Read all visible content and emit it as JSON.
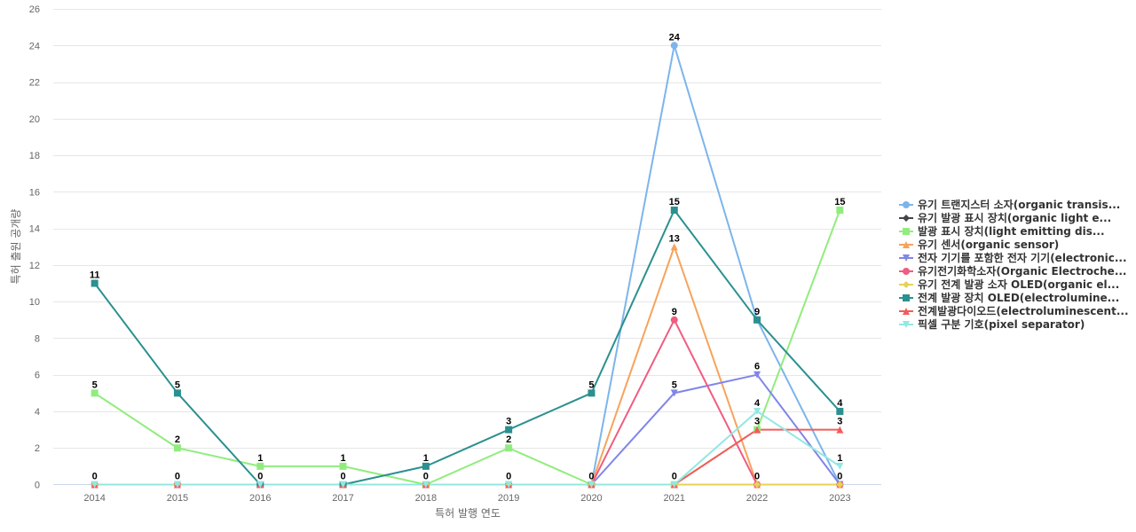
{
  "chart_data": {
    "type": "line",
    "title": "",
    "xlabel": "특허 발행 연도",
    "ylabel": "특허 출원 공개량",
    "x": [
      "2014",
      "2015",
      "2016",
      "2017",
      "2018",
      "2019",
      "2020",
      "2021",
      "2022",
      "2023"
    ],
    "ylim": [
      0,
      26
    ],
    "yticks": [
      0,
      2,
      4,
      6,
      8,
      10,
      12,
      14,
      16,
      18,
      20,
      22,
      24,
      26
    ],
    "grid": true,
    "legend_position": "right",
    "series": [
      {
        "name": "유기 트랜지스터 소자(organic transis...",
        "color": "#7cb5ec",
        "marker": "circle",
        "values": [
          0,
          0,
          0,
          0,
          0,
          0,
          0,
          24,
          9,
          0
        ]
      },
      {
        "name": "유기 발광 표시 장치(organic light e...",
        "color": "#434348",
        "marker": "diamond",
        "values": [
          0,
          0,
          0,
          0,
          0,
          0,
          0,
          0,
          0,
          0
        ]
      },
      {
        "name": "발광 표시 장치(light emitting dis...",
        "color": "#90ed7d",
        "marker": "square",
        "values": [
          5,
          2,
          1,
          1,
          0,
          2,
          0,
          0,
          3,
          15
        ]
      },
      {
        "name": "유기 센서(organic sensor)",
        "color": "#f7a35c",
        "marker": "triangle",
        "values": [
          0,
          0,
          0,
          0,
          0,
          0,
          0,
          13,
          0,
          0
        ]
      },
      {
        "name": "전자 기기를 포함한 전자 기기(electronic...",
        "color": "#8085e9",
        "marker": "triangle-down",
        "values": [
          0,
          0,
          0,
          0,
          0,
          0,
          0,
          5,
          6,
          0
        ]
      },
      {
        "name": "유기전기화학소자(Organic Electroche...",
        "color": "#f15c80",
        "marker": "circle",
        "values": [
          0,
          0,
          0,
          0,
          0,
          0,
          0,
          9,
          0,
          0
        ]
      },
      {
        "name": "유기 전계 발광 소자 OLED(organic el...",
        "color": "#e4d354",
        "marker": "diamond",
        "values": [
          0,
          0,
          0,
          0,
          0,
          0,
          0,
          0,
          0,
          0
        ]
      },
      {
        "name": "전계 발광 장치 OLED(electrolumine...",
        "color": "#2b908f",
        "marker": "square",
        "values": [
          11,
          5,
          0,
          0,
          1,
          3,
          5,
          15,
          9,
          4
        ]
      },
      {
        "name": "전계발광다이오드(electroluminescent...",
        "color": "#f45b5b",
        "marker": "triangle",
        "values": [
          0,
          0,
          0,
          0,
          0,
          0,
          0,
          0,
          3,
          3
        ]
      },
      {
        "name": "픽셀 구분 기호(pixel separator)",
        "color": "#91e8e1",
        "marker": "triangle-down",
        "values": [
          0,
          0,
          0,
          0,
          0,
          0,
          0,
          0,
          4,
          1
        ]
      }
    ],
    "data_labels": [
      {
        "x": "2014",
        "series": 0,
        "text": "0"
      },
      {
        "x": "2014",
        "series": 2,
        "text": "5"
      },
      {
        "x": "2014",
        "series": 7,
        "text": "11"
      },
      {
        "x": "2015",
        "series": 0,
        "text": "0"
      },
      {
        "x": "2015",
        "series": 2,
        "text": "2"
      },
      {
        "x": "2015",
        "series": 7,
        "text": "5"
      },
      {
        "x": "2016",
        "series": 0,
        "text": "0"
      },
      {
        "x": "2016",
        "series": 2,
        "text": "1"
      },
      {
        "x": "2017",
        "series": 0,
        "text": "0"
      },
      {
        "x": "2017",
        "series": 2,
        "text": "1"
      },
      {
        "x": "2018",
        "series": 0,
        "text": "0"
      },
      {
        "x": "2018",
        "series": 7,
        "text": "1"
      },
      {
        "x": "2019",
        "series": 0,
        "text": "0"
      },
      {
        "x": "2019",
        "series": 2,
        "text": "2"
      },
      {
        "x": "2019",
        "series": 7,
        "text": "3"
      },
      {
        "x": "2020",
        "series": 0,
        "text": "0"
      },
      {
        "x": "2020",
        "series": 7,
        "text": "5"
      },
      {
        "x": "2021",
        "series": 0,
        "text": "24"
      },
      {
        "x": "2021",
        "series": 7,
        "text": "15"
      },
      {
        "x": "2021",
        "series": 3,
        "text": "13"
      },
      {
        "x": "2021",
        "series": 5,
        "text": "9"
      },
      {
        "x": "2021",
        "series": 4,
        "text": "5"
      },
      {
        "x": "2021",
        "series": 1,
        "text": "0"
      },
      {
        "x": "2022",
        "series": 7,
        "text": "9"
      },
      {
        "x": "2022",
        "series": 4,
        "text": "6"
      },
      {
        "x": "2022",
        "series": 9,
        "text": "4"
      },
      {
        "x": "2022",
        "series": 8,
        "text": "3"
      },
      {
        "x": "2022",
        "series": 5,
        "text": "0"
      },
      {
        "x": "2023",
        "series": 2,
        "text": "15"
      },
      {
        "x": "2023",
        "series": 7,
        "text": "4"
      },
      {
        "x": "2023",
        "series": 8,
        "text": "3"
      },
      {
        "x": "2023",
        "series": 9,
        "text": "1"
      },
      {
        "x": "2023",
        "series": 0,
        "text": "0"
      }
    ]
  }
}
